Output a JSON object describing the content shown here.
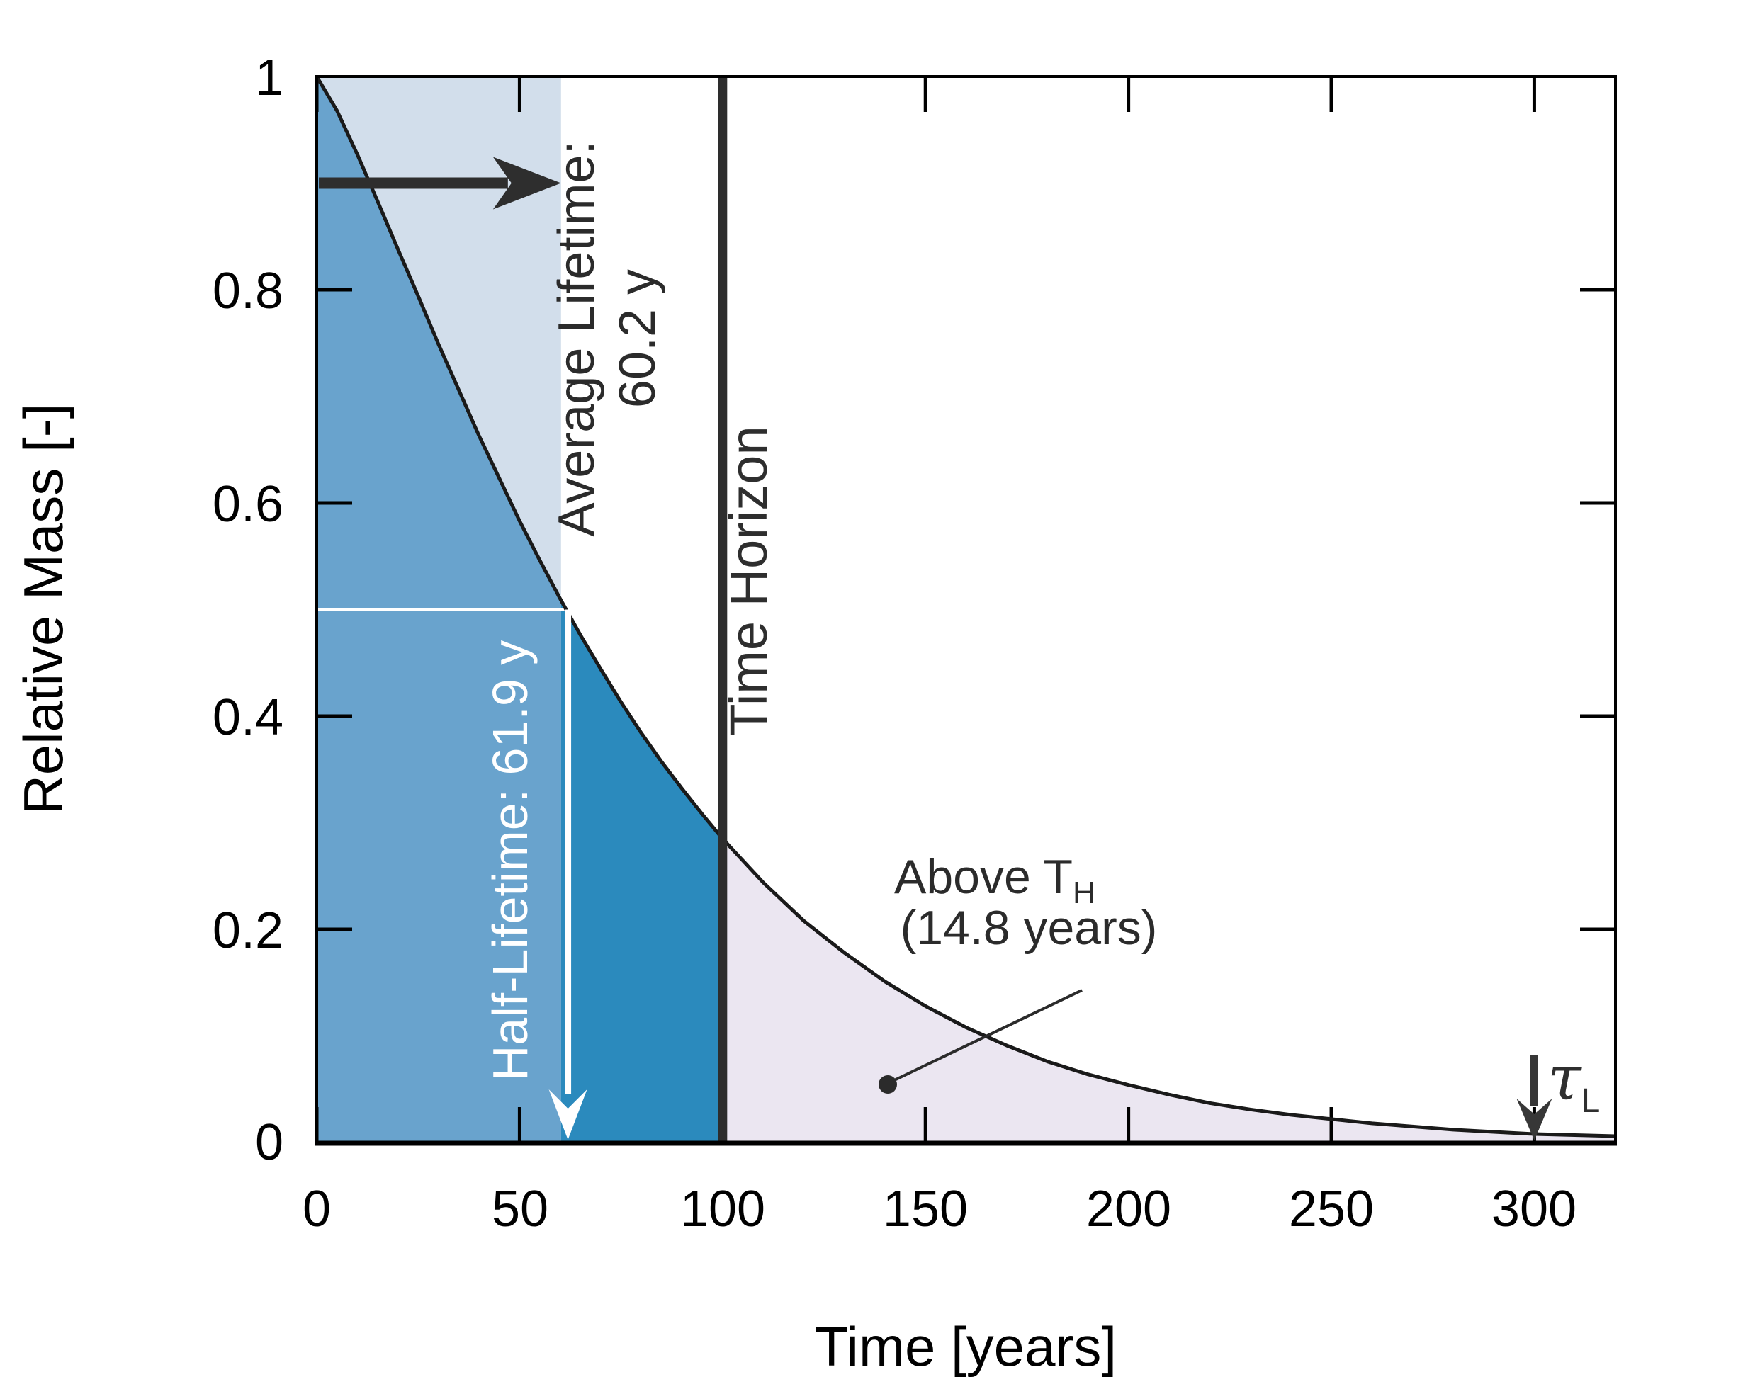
{
  "figure": {
    "background": "#ffffff"
  },
  "chart_data": {
    "type": "area",
    "title": "",
    "xlabel": "Time [years]",
    "ylabel": "Relative Mass [-]",
    "xlim": [
      0,
      320
    ],
    "ylim": [
      0,
      1
    ],
    "grid": false,
    "legend": "none",
    "x_ticks": [
      0,
      50,
      100,
      150,
      200,
      250,
      300
    ],
    "x_tick_labels": [
      "0",
      "50",
      "100",
      "150",
      "200",
      "250",
      "300"
    ],
    "y_ticks": [
      1,
      0.8,
      0.6,
      0.4,
      0.2,
      0
    ],
    "y_tick_labels": [
      "1",
      "0.8",
      "0.6",
      "0.4",
      "0.2",
      "0"
    ],
    "series": [
      {
        "name": "relative-mass-decay-curve",
        "x": [
          0,
          5,
          10,
          15,
          20,
          25,
          30,
          35,
          40,
          45,
          50,
          55,
          60,
          61.9,
          65,
          70,
          75,
          80,
          85,
          90,
          95,
          100,
          110,
          120,
          130,
          140,
          150,
          160,
          170,
          180,
          190,
          200,
          210,
          220,
          230,
          240,
          250,
          260,
          270,
          280,
          290,
          300,
          310,
          320
        ],
        "y": [
          1.0,
          0.968,
          0.927,
          0.883,
          0.838,
          0.794,
          0.749,
          0.706,
          0.663,
          0.623,
          0.583,
          0.546,
          0.51,
          0.497,
          0.476,
          0.444,
          0.413,
          0.384,
          0.357,
          0.332,
          0.308,
          0.285,
          0.244,
          0.208,
          0.178,
          0.151,
          0.128,
          0.108,
          0.091,
          0.076,
          0.064,
          0.054,
          0.045,
          0.037,
          0.031,
          0.026,
          0.022,
          0.018,
          0.015,
          0.012,
          0.01,
          0.008,
          0.007,
          0.006
        ]
      }
    ],
    "regions": [
      {
        "name": "average-lifetime-band",
        "kind": "vertical-band",
        "t0": 0,
        "t1": 60.2,
        "fill": "#d2deeb"
      },
      {
        "name": "under-curve-before-average-lifetime",
        "kind": "area-under-curve",
        "t0": 0,
        "t1": 60.2,
        "fill": "#69a3cd"
      },
      {
        "name": "under-curve-to-time-horizon",
        "kind": "area-under-curve",
        "t0": 60.2,
        "t1": 100,
        "fill": "#2b8abd"
      },
      {
        "name": "under-curve-above-time-horizon",
        "kind": "area-under-curve",
        "t0": 100,
        "t1": 320,
        "fill": "#ebe6f1"
      }
    ],
    "annotations": {
      "average_lifetime": {
        "line1": "Average Lifetime:",
        "line2": "60.2 y",
        "t": 60.2,
        "arrow_mass": 0.9
      },
      "half_lifetime": {
        "label": "Half-Lifetime: 61.9 y",
        "t": 61.9,
        "mass": 0.5
      },
      "time_horizon": {
        "label": "Time Horizon",
        "t": 100
      },
      "above_th": {
        "line1_main": "Above T",
        "line1_sub": "H",
        "line2": "(14.8 years)"
      },
      "tau_l": {
        "symbol": "τ",
        "sub": "L",
        "t": 300
      }
    },
    "colors": {
      "background": "#ffffff",
      "curve": "#1a1a1a",
      "time_horizon_line": "#2d2d2d",
      "axis": "#000000",
      "band_fill": "#d2deeb",
      "under_curve_left": "#69a3cd",
      "under_curve_mid": "#2b8abd",
      "under_curve_right": "#ebe6f1",
      "white_marker": "#ffffff",
      "annotation_ink": "#2b2b2b"
    }
  }
}
